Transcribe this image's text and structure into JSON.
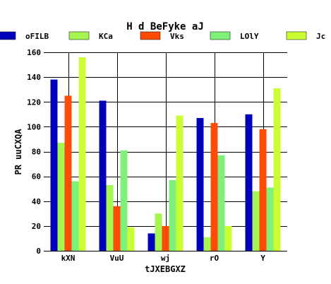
{
  "chart_data": {
    "type": "bar",
    "title": "H d BeFyke aJ",
    "xlabel": "tJXEBGXZ",
    "ylabel": "PR  uuCXQA",
    "categories": [
      "kXN",
      "VuU",
      "wj",
      "rO",
      "Y"
    ],
    "ylim": [
      0,
      160
    ],
    "yticks": [
      0,
      20,
      40,
      60,
      80,
      100,
      120,
      140,
      160
    ],
    "grid": true,
    "legend": "top",
    "series": [
      {
        "name": "oFILB",
        "color": "#0000bb",
        "values": [
          138,
          121,
          14,
          107,
          110
        ]
      },
      {
        "name": "KCa",
        "color": "#a6f550",
        "values": [
          87,
          53,
          30,
          11,
          48
        ]
      },
      {
        "name": "Vks",
        "color": "#ff4c05",
        "values": [
          125,
          36,
          20,
          103,
          98
        ]
      },
      {
        "name": "LOlY",
        "color": "#7ff07a",
        "values": [
          56,
          81,
          57,
          77,
          51
        ]
      },
      {
        "name": "Jc",
        "color": "#ccff33",
        "values": [
          156,
          19,
          109,
          20,
          131
        ]
      }
    ]
  }
}
